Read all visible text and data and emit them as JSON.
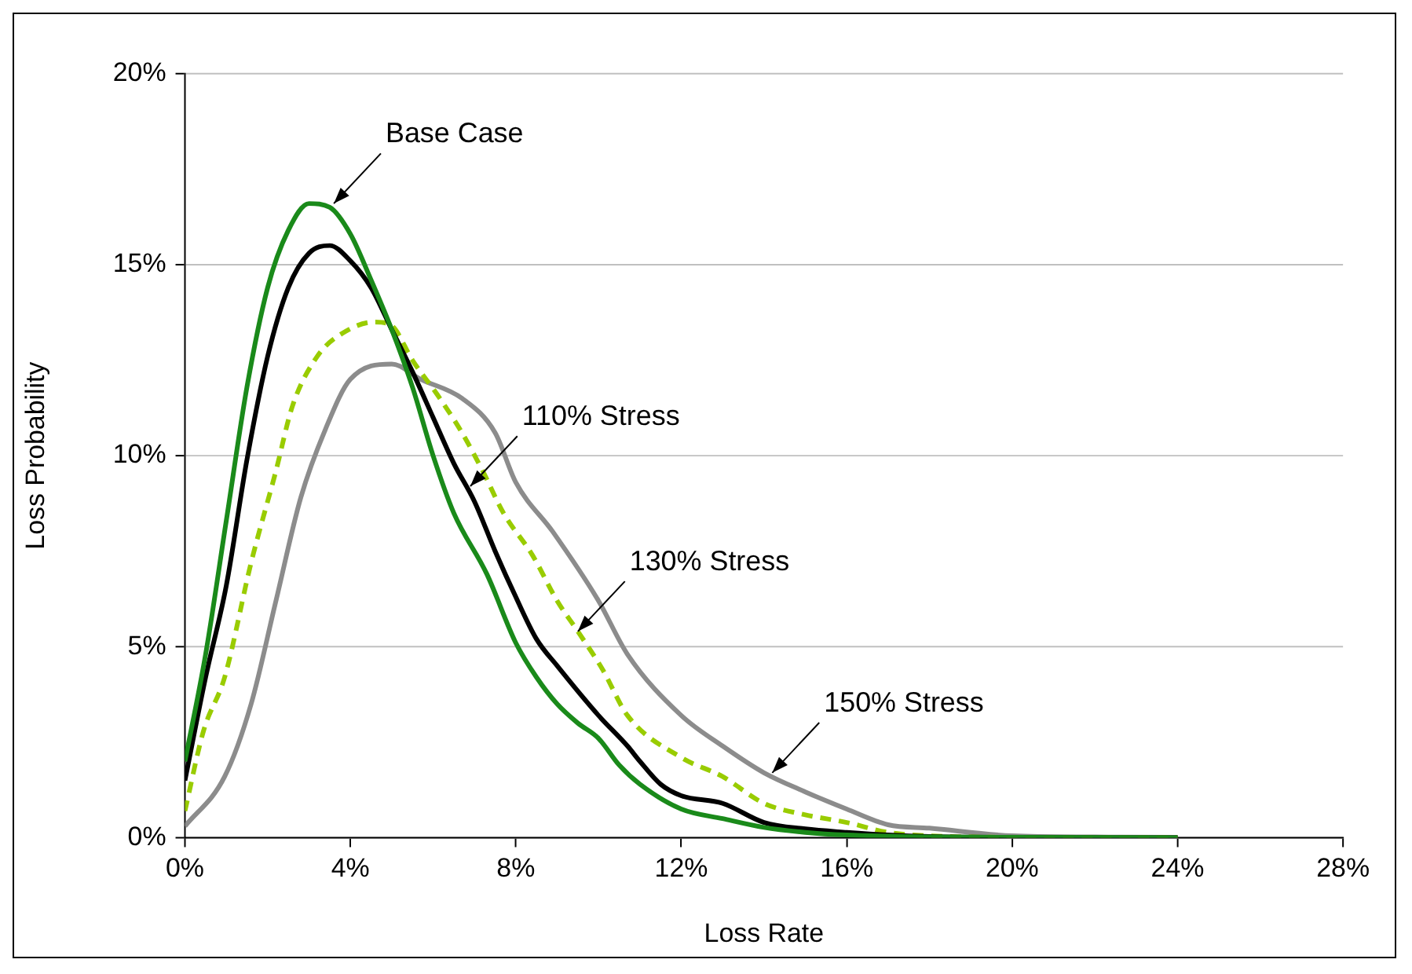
{
  "chart_data": {
    "type": "line",
    "xlabel": "Loss Rate",
    "ylabel": "Loss Probability",
    "xlim": [
      0,
      28
    ],
    "ylim": [
      0,
      20
    ],
    "xticks": [
      {
        "value": 0,
        "label": "0%"
      },
      {
        "value": 4,
        "label": "4%"
      },
      {
        "value": 8,
        "label": "8%"
      },
      {
        "value": 12,
        "label": "12%"
      },
      {
        "value": 16,
        "label": "16%"
      },
      {
        "value": 20,
        "label": "20%"
      },
      {
        "value": 24,
        "label": "24%"
      },
      {
        "value": 28,
        "label": "28%"
      }
    ],
    "yticks": [
      {
        "value": 0,
        "label": "0%"
      },
      {
        "value": 5,
        "label": "5%"
      },
      {
        "value": 10,
        "label": "10%"
      },
      {
        "value": 15,
        "label": "15%"
      },
      {
        "value": 20,
        "label": "20%"
      }
    ],
    "grid": "y",
    "marker": "none",
    "series": [
      {
        "color": "#1a8a1a",
        "x": [
          0,
          0.5,
          1,
          1.5,
          2,
          2.5,
          3,
          3.5,
          4,
          4.5,
          5,
          5.5,
          6,
          6.5,
          7.3,
          8,
          8.5,
          9,
          9.5,
          10,
          10.5,
          11,
          12,
          13,
          14,
          15,
          16,
          18,
          20,
          24
        ],
        "values": [
          2.0,
          4.8,
          8.3,
          11.8,
          14.4,
          15.9,
          16.6,
          16.5,
          15.8,
          14.6,
          13.3,
          11.8,
          10.0,
          8.5,
          6.9,
          5.1,
          4.2,
          3.5,
          3.0,
          2.6,
          1.9,
          1.4,
          0.75,
          0.5,
          0.27,
          0.14,
          0.07,
          0.02,
          0.01,
          0
        ]
      },
      {
        "color": "#000000",
        "x": [
          0,
          0.5,
          1,
          1.5,
          2,
          2.5,
          3,
          3.5,
          4,
          4.5,
          5,
          5.5,
          6,
          6.5,
          7,
          7.5,
          8,
          8.5,
          9,
          10,
          10.7,
          11,
          11.5,
          12,
          13,
          14,
          15,
          16,
          17,
          18,
          20,
          24
        ],
        "values": [
          1.5,
          4.2,
          6.6,
          9.9,
          12.6,
          14.4,
          15.3,
          15.5,
          15.1,
          14.4,
          13.3,
          12.2,
          11.0,
          9.8,
          8.8,
          7.5,
          6.3,
          5.2,
          4.5,
          3.2,
          2.4,
          2.0,
          1.4,
          1.1,
          0.9,
          0.4,
          0.23,
          0.14,
          0.07,
          0.03,
          0.01,
          0
        ]
      },
      {
        "color": "#99cc00",
        "line_style": "dashed",
        "x": [
          0,
          0.45,
          0.96,
          1.6,
          2.2,
          2.6,
          3.2,
          3.8,
          4.6,
          5.0,
          5.5,
          6.1,
          6.7,
          7.2,
          7.7,
          8.4,
          9,
          9.5,
          10.1,
          10.7,
          12,
          13,
          14,
          15,
          16,
          17,
          18,
          20,
          24
        ],
        "values": [
          0.7,
          2.8,
          4.2,
          7.2,
          9.6,
          11.3,
          12.6,
          13.2,
          13.5,
          13.4,
          12.5,
          11.6,
          10.6,
          9.6,
          8.5,
          7.4,
          6.2,
          5.4,
          4.4,
          3.2,
          2.1,
          1.6,
          0.9,
          0.6,
          0.4,
          0.14,
          0.05,
          0.01,
          0
        ]
      },
      {
        "color": "#8c8c8c",
        "x": [
          0,
          0.96,
          1.6,
          2.2,
          2.8,
          3.4,
          4,
          5,
          5.7,
          6.7,
          7.5,
          8,
          8.9,
          10,
          10.7,
          12,
          13,
          14,
          15,
          16,
          17,
          18,
          20,
          22,
          24
        ],
        "values": [
          0.3,
          1.6,
          3.5,
          6.2,
          8.9,
          10.7,
          12.0,
          12.4,
          12.0,
          11.5,
          10.6,
          9.3,
          8.0,
          6.2,
          4.8,
          3.2,
          2.4,
          1.7,
          1.2,
          0.75,
          0.34,
          0.25,
          0.05,
          0.02,
          0.01
        ]
      }
    ],
    "annotations": [
      {
        "text": "Base Case",
        "x": 3.6,
        "y": 16.6
      },
      {
        "text": "110% Stress",
        "x": 6.9,
        "y": 9.2
      },
      {
        "text": "130% Stress",
        "x": 9.5,
        "y": 5.4
      },
      {
        "text": "150% Stress",
        "x": 14.2,
        "y": 1.7
      }
    ]
  }
}
